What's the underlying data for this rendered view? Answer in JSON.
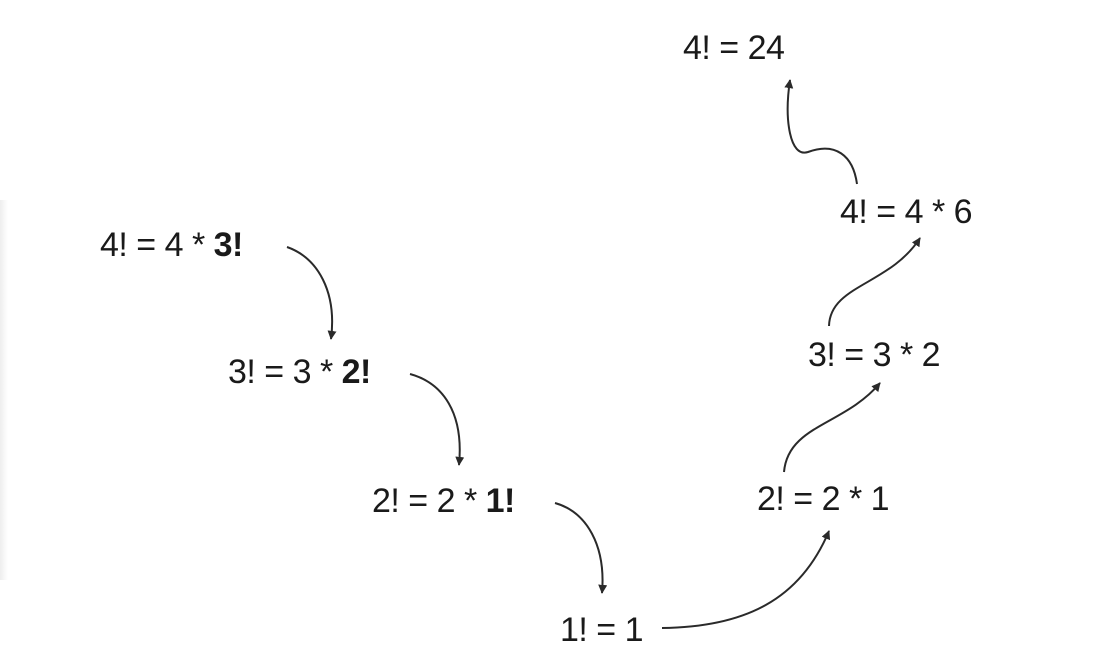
{
  "diagram": {
    "recursion_steps": [
      {
        "lhs": "4! = 4 * ",
        "bold": "3!"
      },
      {
        "lhs": "3! = 3 * ",
        "bold": "2!"
      },
      {
        "lhs": "2! = 2 * ",
        "bold": "1!"
      }
    ],
    "base_case": "1! = 1",
    "return_steps": [
      "2! = 2 * 1",
      "3! = 3 * 2",
      "4! = 4 * 6"
    ],
    "result": "4! = 24"
  }
}
